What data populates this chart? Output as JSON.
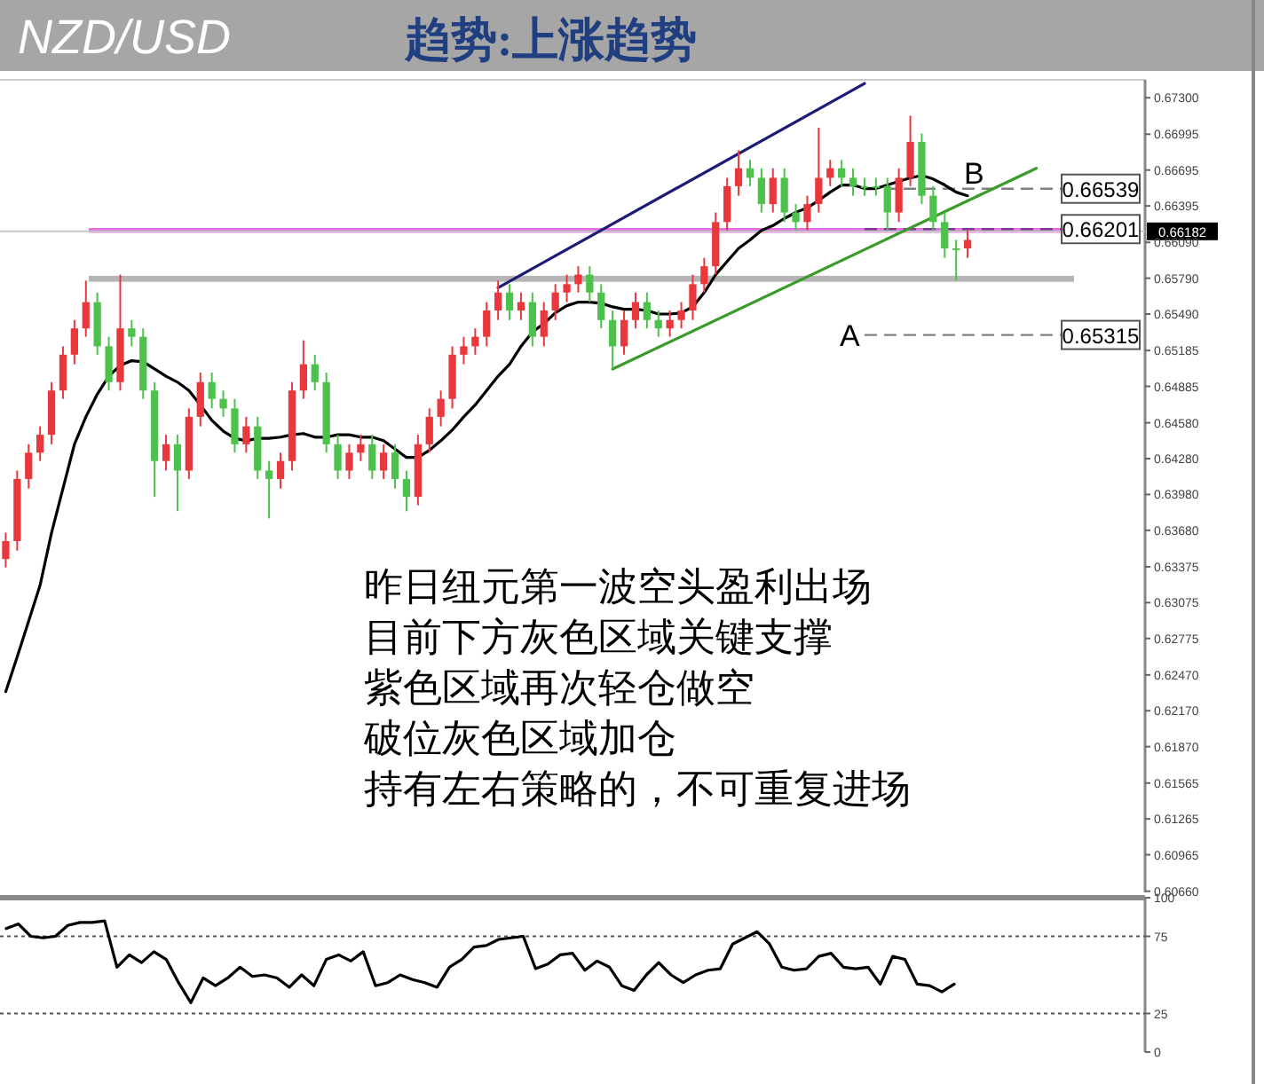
{
  "chart_data": [
    {
      "type": "candlestick",
      "title": "NZD/USD",
      "subtitle": "趋势:上涨趋势",
      "categories": [
        null,
        null,
        null,
        null,
        null,
        null,
        null,
        null,
        null,
        null,
        null,
        null,
        null,
        null,
        null,
        null,
        null,
        null,
        null,
        null,
        null,
        null,
        null,
        null,
        null,
        null,
        null,
        null,
        null,
        null,
        null,
        null,
        null,
        null,
        null,
        null,
        null,
        null,
        null,
        null,
        null,
        null,
        null,
        null,
        null,
        null,
        null,
        null,
        null,
        null,
        null,
        null,
        null,
        null,
        null,
        null,
        null,
        null,
        null,
        null,
        null,
        null,
        null,
        null,
        null,
        null,
        null,
        null,
        null,
        null,
        null,
        null,
        null,
        null,
        null,
        null,
        null,
        null,
        null,
        null,
        null,
        null,
        null,
        null,
        null,
        null,
        null,
        null,
        null,
        null,
        null,
        null,
        null,
        null,
        null,
        null,
        null,
        null,
        null,
        null
      ],
      "ohlc": [
        [
          0.6344,
          0.6366,
          0.6337,
          0.6359
        ],
        [
          0.6359,
          0.6418,
          0.6351,
          0.6411
        ],
        [
          0.6411,
          0.644,
          0.6403,
          0.6433
        ],
        [
          0.6433,
          0.6455,
          0.6426,
          0.6448
        ],
        [
          0.6448,
          0.6492,
          0.644,
          0.6485
        ],
        [
          0.6485,
          0.6522,
          0.6478,
          0.6515
        ],
        [
          0.6515,
          0.6544,
          0.6507,
          0.6537
        ],
        [
          0.6537,
          0.6577,
          0.653,
          0.6559
        ],
        [
          0.6559,
          0.6567,
          0.6515,
          0.6522
        ],
        [
          0.6522,
          0.653,
          0.6485,
          0.6492
        ],
        [
          0.6492,
          0.6582,
          0.6485,
          0.6537
        ],
        [
          0.6537,
          0.6544,
          0.6522,
          0.653
        ],
        [
          0.653,
          0.6537,
          0.6478,
          0.6485
        ],
        [
          0.6485,
          0.6492,
          0.6396,
          0.6426
        ],
        [
          0.6426,
          0.6448,
          0.6418,
          0.644
        ],
        [
          0.644,
          0.6448,
          0.6384,
          0.6418
        ],
        [
          0.6418,
          0.647,
          0.6411,
          0.6463
        ],
        [
          0.6463,
          0.65,
          0.6455,
          0.6492
        ],
        [
          0.6492,
          0.65,
          0.647,
          0.6478
        ],
        [
          0.6478,
          0.6485,
          0.6463,
          0.647
        ],
        [
          0.647,
          0.6478,
          0.6433,
          0.644
        ],
        [
          0.644,
          0.6463,
          0.6433,
          0.6455
        ],
        [
          0.6455,
          0.6463,
          0.6411,
          0.6418
        ],
        [
          0.6418,
          0.6426,
          0.6378,
          0.6411
        ],
        [
          0.6411,
          0.6433,
          0.6403,
          0.6426
        ],
        [
          0.6426,
          0.6492,
          0.6418,
          0.6485
        ],
        [
          0.6485,
          0.6527,
          0.6478,
          0.6507
        ],
        [
          0.6507,
          0.6515,
          0.6485,
          0.6492
        ],
        [
          0.6492,
          0.65,
          0.6433,
          0.644
        ],
        [
          0.644,
          0.6448,
          0.6411,
          0.6418
        ],
        [
          0.6418,
          0.644,
          0.6411,
          0.6433
        ],
        [
          0.6433,
          0.6448,
          0.6426,
          0.644
        ],
        [
          0.644,
          0.6448,
          0.6411,
          0.6418
        ],
        [
          0.6418,
          0.644,
          0.6411,
          0.6433
        ],
        [
          0.6433,
          0.644,
          0.6403,
          0.6411
        ],
        [
          0.6411,
          0.6418,
          0.6384,
          0.6396
        ],
        [
          0.6396,
          0.6448,
          0.6389,
          0.644
        ],
        [
          0.644,
          0.647,
          0.6433,
          0.6463
        ],
        [
          0.6463,
          0.6485,
          0.6455,
          0.6478
        ],
        [
          0.6478,
          0.6522,
          0.647,
          0.6515
        ],
        [
          0.6515,
          0.653,
          0.6507,
          0.6522
        ],
        [
          0.6522,
          0.6537,
          0.6515,
          0.653
        ],
        [
          0.653,
          0.6559,
          0.6522,
          0.6552
        ],
        [
          0.6552,
          0.6577,
          0.6544,
          0.6567
        ],
        [
          0.6567,
          0.6574,
          0.6544,
          0.6552
        ],
        [
          0.6552,
          0.6567,
          0.6544,
          0.6559
        ],
        [
          0.6559,
          0.6567,
          0.6522,
          0.653
        ],
        [
          0.653,
          0.6559,
          0.6522,
          0.6552
        ],
        [
          0.6552,
          0.6574,
          0.6544,
          0.6567
        ],
        [
          0.6567,
          0.6582,
          0.6559,
          0.6574
        ],
        [
          0.6574,
          0.6589,
          0.6567,
          0.6582
        ],
        [
          0.6582,
          0.6589,
          0.6559,
          0.6567
        ],
        [
          0.6567,
          0.6574,
          0.6537,
          0.6544
        ],
        [
          0.6544,
          0.6552,
          0.6503,
          0.6522
        ],
        [
          0.6522,
          0.6552,
          0.6515,
          0.6544
        ],
        [
          0.6544,
          0.6567,
          0.6537,
          0.6559
        ],
        [
          0.6559,
          0.6567,
          0.6537,
          0.6544
        ],
        [
          0.6544,
          0.6552,
          0.653,
          0.6537
        ],
        [
          0.6537,
          0.6552,
          0.653,
          0.6544
        ],
        [
          0.6544,
          0.6559,
          0.6537,
          0.6552
        ],
        [
          0.6552,
          0.6582,
          0.6544,
          0.6574
        ],
        [
          0.6574,
          0.6596,
          0.6567,
          0.6589
        ],
        [
          0.6589,
          0.6634,
          0.6582,
          0.6626
        ],
        [
          0.6626,
          0.6663,
          0.6619,
          0.6656
        ],
        [
          0.6656,
          0.6686,
          0.6648,
          0.6671
        ],
        [
          0.6671,
          0.6678,
          0.6656,
          0.6663
        ],
        [
          0.6663,
          0.6671,
          0.6634,
          0.6641
        ],
        [
          0.6641,
          0.6671,
          0.6634,
          0.6663
        ],
        [
          0.6663,
          0.6671,
          0.6626,
          0.6634
        ],
        [
          0.6634,
          0.6641,
          0.6619,
          0.6626
        ],
        [
          0.6626,
          0.6648,
          0.6619,
          0.6641
        ],
        [
          0.6641,
          0.6705,
          0.6634,
          0.6663
        ],
        [
          0.6663,
          0.6678,
          0.6656,
          0.6671
        ],
        [
          0.6671,
          0.6678,
          0.6656,
          0.6663
        ],
        [
          0.6663,
          0.6671,
          0.6648,
          0.6656
        ],
        [
          0.6656,
          0.6663,
          0.6648,
          0.6656
        ],
        [
          0.6656,
          0.6663,
          0.6648,
          0.6656
        ],
        [
          0.6656,
          0.6663,
          0.6619,
          0.6634
        ],
        [
          0.6634,
          0.6671,
          0.6626,
          0.6663
        ],
        [
          0.6663,
          0.6715,
          0.6656,
          0.6693
        ],
        [
          0.6693,
          0.67,
          0.6641,
          0.6648
        ],
        [
          0.6648,
          0.6656,
          0.6619,
          0.6626
        ],
        [
          0.6626,
          0.6634,
          0.6596,
          0.6604
        ],
        [
          0.6604,
          0.6611,
          0.6577,
          0.6604
        ],
        [
          0.6604,
          0.6619,
          0.6596,
          0.6611
        ],
        null,
        null,
        null,
        null,
        null,
        null,
        null,
        null,
        null,
        null,
        null,
        null,
        null,
        null,
        null
      ],
      "colors": [
        "#e8383d",
        "#e8383d",
        "#e8383d",
        "#e8383d",
        "#e8383d",
        "#e8383d",
        "#e8383d",
        "#e8383d",
        "#4cc24c",
        "#4cc24c",
        "#e8383d",
        "#4cc24c",
        "#4cc24c",
        "#4cc24c",
        "#e8383d",
        "#4cc24c",
        "#e8383d",
        "#e8383d",
        "#4cc24c",
        "#4cc24c",
        "#4cc24c",
        "#e8383d",
        "#4cc24c",
        "#4cc24c",
        "#e8383d",
        "#e8383d",
        "#e8383d",
        "#4cc24c",
        "#4cc24c",
        "#4cc24c",
        "#e8383d",
        "#e8383d",
        "#4cc24c",
        "#e8383d",
        "#4cc24c",
        "#4cc24c",
        "#e8383d",
        "#e8383d",
        "#e8383d",
        "#e8383d",
        "#e8383d",
        "#e8383d",
        "#e8383d",
        "#e8383d",
        "#4cc24c",
        "#e8383d",
        "#4cc24c",
        "#e8383d",
        "#e8383d",
        "#e8383d",
        "#e8383d",
        "#4cc24c",
        "#4cc24c",
        "#4cc24c",
        "#e8383d",
        "#e8383d",
        "#4cc24c",
        "#4cc24c",
        "#e8383d",
        "#e8383d",
        "#e8383d",
        "#e8383d",
        "#e8383d",
        "#e8383d",
        "#e8383d",
        "#4cc24c",
        "#4cc24c",
        "#e8383d",
        "#4cc24c",
        "#4cc24c",
        "#e8383d",
        "#e8383d",
        "#e8383d",
        "#4cc24c",
        "#4cc24c",
        "#4cc24c",
        "#4cc24c",
        "#4cc24c",
        "#e8383d",
        "#e8383d",
        "#4cc24c",
        "#4cc24c",
        "#4cc24c",
        "#4cc24c",
        "#e8383d",
        null,
        null,
        null,
        null,
        null,
        null,
        null,
        null,
        null,
        null,
        null,
        null,
        null,
        null,
        null
      ],
      "series": [
        {
          "type": "line",
          "color": "#000000",
          "values": [
            0.6233,
            0.6262,
            0.6292,
            0.6322,
            0.6366,
            0.6403,
            0.644,
            0.6463,
            0.6482,
            0.6497,
            0.6506,
            0.651,
            0.6509,
            0.6503,
            0.6497,
            0.6492,
            0.6485,
            0.6473,
            0.646,
            0.6451,
            0.6445,
            0.6443,
            0.6445,
            0.6445,
            0.6446,
            0.6448,
            0.6449,
            0.6446,
            0.6446,
            0.6448,
            0.6448,
            0.6446,
            0.6446,
            0.6443,
            0.6436,
            0.6429,
            0.6429,
            0.6435,
            0.6443,
            0.6452,
            0.6463,
            0.6473,
            0.6485,
            0.6497,
            0.6507,
            0.6522,
            0.6534,
            0.6541,
            0.655,
            0.6556,
            0.6559,
            0.6559,
            0.6558,
            0.6555,
            0.6553,
            0.6553,
            0.6552,
            0.6549,
            0.6549,
            0.655,
            0.6555,
            0.6567,
            0.6582,
            0.6593,
            0.6604,
            0.6611,
            0.6619,
            0.6623,
            0.6629,
            0.6634,
            0.6638,
            0.6644,
            0.6651,
            0.6657,
            0.6657,
            0.6654,
            0.6654,
            0.6657,
            0.666,
            0.6663,
            0.6665,
            0.6662,
            0.6657,
            0.6651,
            0.6648,
            null,
            null,
            null,
            null,
            null,
            null,
            null,
            null,
            null,
            null,
            null,
            null,
            null,
            null,
            null
          ]
        },
        {
          "type": "line",
          "color": "#1c1c78",
          "values": [
            null,
            null,
            null,
            null,
            null,
            null,
            null,
            null,
            null,
            null,
            null,
            null,
            null,
            null,
            null,
            null,
            null,
            null,
            null,
            null,
            null,
            null,
            null,
            null,
            null,
            null,
            null,
            null,
            null,
            null,
            null,
            null,
            null,
            null,
            null,
            null,
            null,
            null,
            null,
            null,
            null,
            null,
            null,
            0.6571,
            null,
            null,
            null,
            null,
            null,
            null,
            null,
            null,
            null,
            null,
            null,
            null,
            null,
            null,
            null,
            null,
            null,
            null,
            null,
            null,
            null,
            null,
            null,
            null,
            null,
            null,
            null,
            null,
            null,
            null,
            null,
            0.6742,
            null,
            null,
            null,
            null,
            null,
            null,
            null,
            null,
            null,
            null,
            null,
            null,
            null,
            null,
            null,
            null,
            null,
            null,
            null,
            null,
            null,
            null,
            null,
            null
          ]
        },
        {
          "type": "line",
          "color": "#3a9a2a",
          "values": [
            null,
            null,
            null,
            null,
            null,
            null,
            null,
            null,
            null,
            null,
            null,
            null,
            null,
            null,
            null,
            null,
            null,
            null,
            null,
            null,
            null,
            null,
            null,
            null,
            null,
            null,
            null,
            null,
            null,
            null,
            null,
            null,
            null,
            null,
            null,
            null,
            null,
            null,
            null,
            null,
            null,
            null,
            null,
            null,
            null,
            null,
            null,
            null,
            null,
            null,
            null,
            null,
            null,
            0.6503,
            null,
            null,
            null,
            null,
            null,
            null,
            null,
            null,
            null,
            null,
            null,
            null,
            null,
            null,
            null,
            null,
            null,
            null,
            null,
            null,
            null,
            null,
            null,
            null,
            null,
            null,
            null,
            null,
            null,
            null,
            null,
            null,
            null,
            null,
            null,
            null,
            0.6671,
            null,
            null,
            null,
            null,
            null,
            null,
            null,
            null,
            null
          ]
        }
      ],
      "ylim": [
        0.6065,
        0.6745
      ],
      "yticks": [
        {
          "value": 0.673,
          "label": "0.67300"
        },
        {
          "value": 0.66995,
          "label": "0.66995"
        },
        {
          "value": 0.66695,
          "label": "0.66695"
        },
        {
          "value": 0.66395,
          "label": "0.66395"
        },
        {
          "value": 0.6609,
          "label": "0.66090"
        },
        {
          "value": 0.6579,
          "label": "0.65790"
        },
        {
          "value": 0.6549,
          "label": "0.65490"
        },
        {
          "value": 0.65185,
          "label": "0.65185"
        },
        {
          "value": 0.64885,
          "label": "0.64885"
        },
        {
          "value": 0.6458,
          "label": "0.64580"
        },
        {
          "value": 0.6428,
          "label": "0.64280"
        },
        {
          "value": 0.6398,
          "label": "0.63980"
        },
        {
          "value": 0.6368,
          "label": "0.63680"
        },
        {
          "value": 0.63375,
          "label": "0.63375"
        },
        {
          "value": 0.63075,
          "label": "0.63075"
        },
        {
          "value": 0.62775,
          "label": "0.62775"
        },
        {
          "value": 0.6247,
          "label": "0.62470"
        },
        {
          "value": 0.6217,
          "label": "0.62170"
        },
        {
          "value": 0.6187,
          "label": "0.61870"
        },
        {
          "value": 0.61565,
          "label": "0.61565"
        },
        {
          "value": 0.61265,
          "label": "0.61265"
        },
        {
          "value": 0.60965,
          "label": "0.60965"
        },
        {
          "value": 0.6066,
          "label": "0.60660"
        }
      ],
      "bands": [
        {
          "axis": "y",
          "from": 0.6576,
          "to": 0.6581,
          "color": "#b4b4b4"
        },
        {
          "axis": "y",
          "from": 0.6617,
          "to": 0.6621,
          "color": "#e070e0"
        }
      ],
      "ref_lines": [
        {
          "axis": "y",
          "value": 0.66182,
          "label": "0.66182",
          "color": "#c8c8c8",
          "line_style": "solid"
        },
        {
          "axis": "y",
          "value": 0.66539,
          "label": "0.66539",
          "color": "#808080",
          "line_style": "dashed"
        },
        {
          "axis": "y",
          "value": 0.66201,
          "label": "0.66201",
          "color": "#7a3c8c",
          "line_style": "dashed"
        },
        {
          "axis": "y",
          "value": 0.65315,
          "label": "0.65315",
          "color": "#808080",
          "line_style": "dashed"
        }
      ],
      "annotations": [
        {
          "text": "B",
          "y": 0.66539
        },
        "A",
        "昨日纽元第一波空头盈利出场",
        "目前下方灰色区域关键支撑",
        "紫色区域再次轻仓做空",
        "破位灰色区域加仓",
        "持有左右策略的，不可重复进场"
      ],
      "tick_labels": "y"
    },
    {
      "type": "line",
      "categories": [
        null,
        null,
        null,
        null,
        null,
        null,
        null,
        null,
        null,
        null,
        null,
        null,
        null,
        null,
        null,
        null,
        null,
        null,
        null,
        null,
        null,
        null,
        null,
        null,
        null,
        null,
        null,
        null,
        null,
        null,
        null,
        null,
        null,
        null,
        null,
        null,
        null,
        null,
        null,
        null,
        null,
        null,
        null,
        null,
        null,
        null,
        null,
        null,
        null,
        null,
        null,
        null,
        null,
        null,
        null,
        null,
        null,
        null,
        null,
        null,
        null,
        null,
        null,
        null,
        null,
        null,
        null,
        null,
        null,
        null,
        null,
        null,
        null,
        null,
        null,
        null,
        null,
        null,
        null,
        null,
        null,
        null,
        null,
        null,
        null,
        null,
        null,
        null,
        null,
        null,
        null,
        null,
        null
      ],
      "series": [
        {
          "color": "#000000",
          "values": [
            80,
            83,
            75,
            74,
            75,
            82,
            84,
            84,
            85,
            55,
            63,
            58,
            65,
            60,
            45,
            32,
            48,
            43,
            48,
            55,
            49,
            50,
            48,
            42,
            50,
            43,
            60,
            63,
            59,
            65,
            43,
            45,
            50,
            47,
            45,
            42,
            55,
            60,
            68,
            69,
            73,
            74,
            75,
            54,
            57,
            63,
            64,
            53,
            59,
            55,
            43,
            40,
            50,
            58,
            50,
            45,
            50,
            53,
            54,
            70,
            74,
            78,
            70,
            55,
            53,
            54,
            62,
            64,
            55,
            54,
            55,
            44,
            62,
            60,
            44,
            43,
            39,
            44,
            null,
            null,
            null,
            null,
            null,
            null,
            null,
            null,
            null,
            null,
            null,
            null,
            null,
            null,
            null
          ]
        }
      ],
      "ylim": [
        0,
        100
      ],
      "yticks": [
        100,
        75,
        25,
        0
      ],
      "ref_lines": [
        {
          "axis": "y",
          "value": 75,
          "color": "#555555",
          "line_style": "dotted"
        },
        {
          "axis": "y",
          "value": 25,
          "color": "#555555",
          "line_style": "dotted"
        }
      ],
      "tick_labels": "y"
    }
  ]
}
